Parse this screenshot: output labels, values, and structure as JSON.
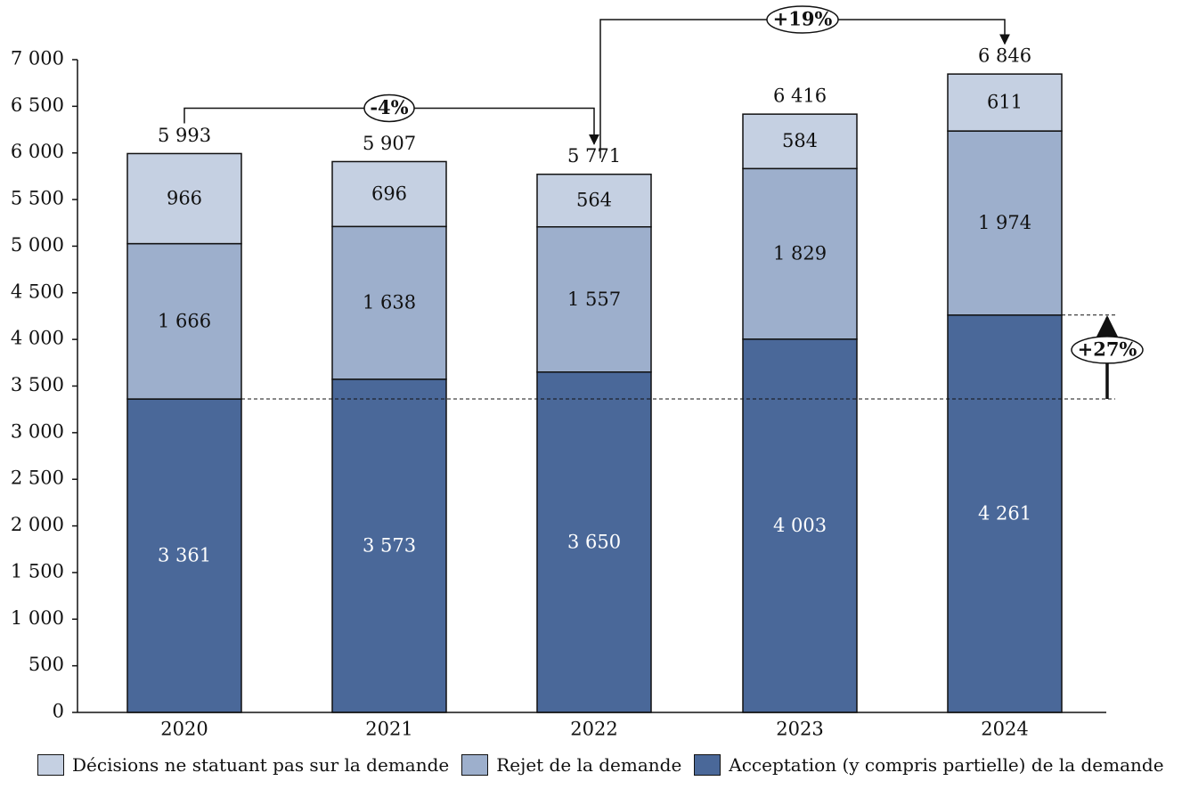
{
  "chart_data": {
    "type": "bar",
    "stacked": true,
    "categories": [
      "2020",
      "2021",
      "2022",
      "2023",
      "2024"
    ],
    "ylim": [
      0,
      7000
    ],
    "yticks": [
      0,
      500,
      1000,
      1500,
      2000,
      2500,
      3000,
      3500,
      4000,
      4500,
      5000,
      5500,
      6000,
      6500,
      7000
    ],
    "ytick_labels": [
      "0",
      "500",
      "1 000",
      "1 500",
      "2 000",
      "2 500",
      "3 000",
      "3 500",
      "4 000",
      "4 500",
      "5 000",
      "5 500",
      "6 000",
      "6 500",
      "7 000"
    ],
    "series": [
      {
        "name": "Acceptation (y compris partielle) de la demande",
        "color": "#4a6899",
        "values": [
          3361,
          3573,
          3650,
          4003,
          4261
        ],
        "labels": [
          "3 361",
          "3 573",
          "3 650",
          "4 003",
          "4 261"
        ]
      },
      {
        "name": "Rejet de la demande",
        "color": "#9dafcc",
        "values": [
          1666,
          1638,
          1557,
          1829,
          1974
        ],
        "labels": [
          "1 666",
          "1 638",
          "1 557",
          "1 829",
          "1 974"
        ]
      },
      {
        "name": "Décisions ne statuant pas sur la demande",
        "color": "#c5d0e2",
        "values": [
          966,
          696,
          564,
          584,
          611
        ],
        "labels": [
          "966",
          "696",
          "564",
          "584",
          "611"
        ]
      }
    ],
    "totals": [
      5993,
      5907,
      5771,
      6416,
      6846
    ],
    "total_labels": [
      "5 993",
      "5 907",
      "5 771",
      "6 416",
      "6 846"
    ],
    "annotations": [
      {
        "label": "-4%",
        "from": "2020",
        "to": "2022"
      },
      {
        "label": "+19%",
        "from": "2022",
        "to": "2024"
      },
      {
        "label": "+27%",
        "series": "Acceptation (y compris partielle) de la demande",
        "from": "2020",
        "to": "2024"
      }
    ],
    "legend_order": [
      "Décisions ne statuant pas sur la demande",
      "Rejet de la demande",
      "Acceptation (y compris partielle) de la demande"
    ],
    "legend_position": "bottom",
    "grid": false
  }
}
